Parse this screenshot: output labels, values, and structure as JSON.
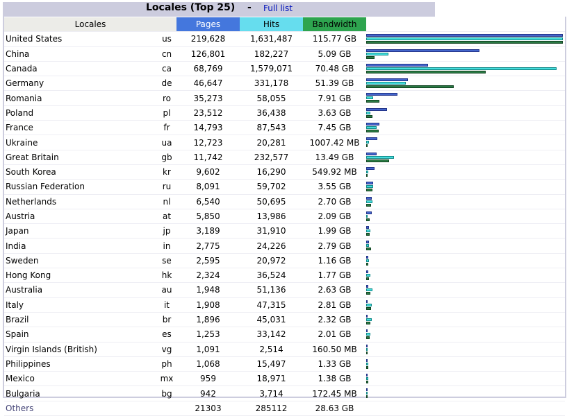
{
  "header": {
    "title": "Locales (Top 25)",
    "separator": "-",
    "full_list_link": "Full list"
  },
  "columns": {
    "locales": "Locales",
    "pages": "Pages",
    "hits": "Hits",
    "bandwidth": "Bandwidth"
  },
  "colors": {
    "title_bar": "#ccccde",
    "pages": "#4477dd",
    "hits": "#66ddee",
    "bandwidth": "#2ea44f",
    "link": "#0011bb"
  },
  "rows": [
    {
      "name": "United States",
      "code": "us",
      "pages": "219,628",
      "hits": "1,631,487",
      "bandwidth": "115.77 GB",
      "pv": 219628,
      "hv": 1631487,
      "bv": 115.77
    },
    {
      "name": "China",
      "code": "cn",
      "pages": "126,801",
      "hits": "182,227",
      "bandwidth": "5.09 GB",
      "pv": 126801,
      "hv": 182227,
      "bv": 5.09
    },
    {
      "name": "Canada",
      "code": "ca",
      "pages": "68,769",
      "hits": "1,579,071",
      "bandwidth": "70.48 GB",
      "pv": 68769,
      "hv": 1579071,
      "bv": 70.48
    },
    {
      "name": "Germany",
      "code": "de",
      "pages": "46,647",
      "hits": "331,178",
      "bandwidth": "51.39 GB",
      "pv": 46647,
      "hv": 331178,
      "bv": 51.39
    },
    {
      "name": "Romania",
      "code": "ro",
      "pages": "35,273",
      "hits": "58,055",
      "bandwidth": "7.91 GB",
      "pv": 35273,
      "hv": 58055,
      "bv": 7.91
    },
    {
      "name": "Poland",
      "code": "pl",
      "pages": "23,512",
      "hits": "36,438",
      "bandwidth": "3.63 GB",
      "pv": 23512,
      "hv": 36438,
      "bv": 3.63
    },
    {
      "name": "France",
      "code": "fr",
      "pages": "14,793",
      "hits": "87,543",
      "bandwidth": "7.45 GB",
      "pv": 14793,
      "hv": 87543,
      "bv": 7.45
    },
    {
      "name": "Ukraine",
      "code": "ua",
      "pages": "12,723",
      "hits": "20,281",
      "bandwidth": "1007.42 MB",
      "pv": 12723,
      "hv": 20281,
      "bv": 0.98
    },
    {
      "name": "Great Britain",
      "code": "gb",
      "pages": "11,742",
      "hits": "232,577",
      "bandwidth": "13.49 GB",
      "pv": 11742,
      "hv": 232577,
      "bv": 13.49
    },
    {
      "name": "South Korea",
      "code": "kr",
      "pages": "9,602",
      "hits": "16,290",
      "bandwidth": "549.92 MB",
      "pv": 9602,
      "hv": 16290,
      "bv": 0.54
    },
    {
      "name": "Russian Federation",
      "code": "ru",
      "pages": "8,091",
      "hits": "59,702",
      "bandwidth": "3.55 GB",
      "pv": 8091,
      "hv": 59702,
      "bv": 3.55
    },
    {
      "name": "Netherlands",
      "code": "nl",
      "pages": "6,540",
      "hits": "50,695",
      "bandwidth": "2.70 GB",
      "pv": 6540,
      "hv": 50695,
      "bv": 2.7
    },
    {
      "name": "Austria",
      "code": "at",
      "pages": "5,850",
      "hits": "13,986",
      "bandwidth": "2.09 GB",
      "pv": 5850,
      "hv": 13986,
      "bv": 2.09
    },
    {
      "name": "Japan",
      "code": "jp",
      "pages": "3,189",
      "hits": "31,910",
      "bandwidth": "1.99 GB",
      "pv": 3189,
      "hv": 31910,
      "bv": 1.99
    },
    {
      "name": "India",
      "code": "in",
      "pages": "2,775",
      "hits": "24,226",
      "bandwidth": "2.79 GB",
      "pv": 2775,
      "hv": 24226,
      "bv": 2.79
    },
    {
      "name": "Sweden",
      "code": "se",
      "pages": "2,595",
      "hits": "20,972",
      "bandwidth": "1.16 GB",
      "pv": 2595,
      "hv": 20972,
      "bv": 1.16
    },
    {
      "name": "Hong Kong",
      "code": "hk",
      "pages": "2,324",
      "hits": "36,524",
      "bandwidth": "1.77 GB",
      "pv": 2324,
      "hv": 36524,
      "bv": 1.77
    },
    {
      "name": "Australia",
      "code": "au",
      "pages": "1,948",
      "hits": "51,136",
      "bandwidth": "2.63 GB",
      "pv": 1948,
      "hv": 51136,
      "bv": 2.63
    },
    {
      "name": "Italy",
      "code": "it",
      "pages": "1,908",
      "hits": "47,315",
      "bandwidth": "2.81 GB",
      "pv": 1908,
      "hv": 47315,
      "bv": 2.81
    },
    {
      "name": "Brazil",
      "code": "br",
      "pages": "1,896",
      "hits": "45,031",
      "bandwidth": "2.32 GB",
      "pv": 1896,
      "hv": 45031,
      "bv": 2.32
    },
    {
      "name": "Spain",
      "code": "es",
      "pages": "1,253",
      "hits": "33,142",
      "bandwidth": "2.01 GB",
      "pv": 1253,
      "hv": 33142,
      "bv": 2.01
    },
    {
      "name": "Virgin Islands (British)",
      "code": "vg",
      "pages": "1,091",
      "hits": "2,514",
      "bandwidth": "160.50 MB",
      "pv": 1091,
      "hv": 2514,
      "bv": 0.16
    },
    {
      "name": "Philippines",
      "code": "ph",
      "pages": "1,068",
      "hits": "15,497",
      "bandwidth": "1.33 GB",
      "pv": 1068,
      "hv": 15497,
      "bv": 1.33
    },
    {
      "name": "Mexico",
      "code": "mx",
      "pages": "959",
      "hits": "18,971",
      "bandwidth": "1.38 GB",
      "pv": 959,
      "hv": 18971,
      "bv": 1.38
    },
    {
      "name": "Bulgaria",
      "code": "bg",
      "pages": "942",
      "hits": "3,714",
      "bandwidth": "172.45 MB",
      "pv": 942,
      "hv": 3714,
      "bv": 0.17
    }
  ],
  "others": {
    "name": "Others",
    "pages": "21303",
    "hits": "285112",
    "bandwidth": "28.63 GB"
  }
}
